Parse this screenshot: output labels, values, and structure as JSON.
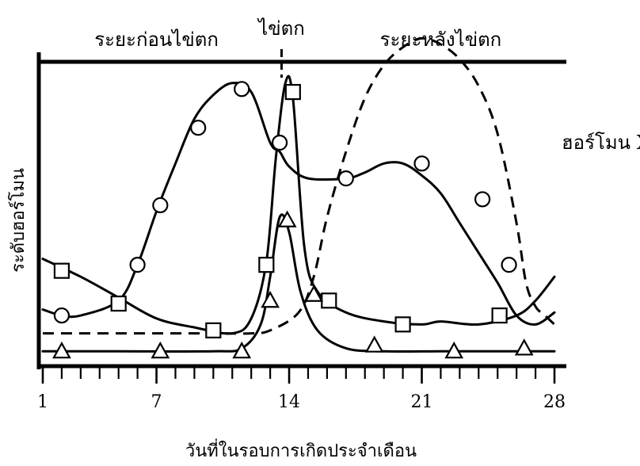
{
  "chart_data": {
    "type": "line",
    "phases": [
      {
        "label": "ระยะก่อนไข่ตก",
        "day": 7
      },
      {
        "label": "ไข่ตก",
        "day": 13.6
      },
      {
        "label": "ระยะหลังไข่ตก",
        "day": 22
      }
    ],
    "ovulation_day": 13.6,
    "xlabel": "วันที่ในรอบการเกิดประจำเดือน",
    "ylabel": "ระดับฮอร์โมน",
    "xlim": [
      1,
      28
    ],
    "ylim": [
      0,
      100
    ],
    "x_tick_labels": [
      {
        "day": 1,
        "label": "1"
      },
      {
        "day": 7,
        "label": "7"
      },
      {
        "day": 14,
        "label": "14"
      },
      {
        "day": 21,
        "label": "21"
      },
      {
        "day": 28,
        "label": "28"
      }
    ],
    "x_minor_ticks": [
      2,
      3,
      4,
      5,
      6,
      8,
      9,
      10,
      11,
      12,
      13,
      15,
      16,
      17,
      18,
      19,
      20,
      22,
      23,
      24,
      25,
      26,
      27
    ],
    "grid": false,
    "series": [
      {
        "marker": "circle",
        "curve": [
          [
            1,
            19
          ],
          [
            2,
            17
          ],
          [
            3,
            17
          ],
          [
            5,
            22
          ],
          [
            6,
            34
          ],
          [
            7,
            52
          ],
          [
            8,
            68
          ],
          [
            9,
            83
          ],
          [
            10,
            91
          ],
          [
            11,
            95
          ],
          [
            12,
            92
          ],
          [
            13,
            75
          ],
          [
            13.5,
            72
          ],
          [
            14,
            67
          ],
          [
            15,
            63
          ],
          [
            17,
            63
          ],
          [
            18,
            65
          ],
          [
            19,
            68
          ],
          [
            20,
            68
          ],
          [
            21,
            64
          ],
          [
            22,
            58
          ],
          [
            23,
            48
          ],
          [
            24,
            38
          ],
          [
            25,
            28
          ],
          [
            26,
            17
          ],
          [
            27,
            14
          ],
          [
            28,
            18
          ]
        ],
        "markers": [
          [
            2,
            17
          ],
          [
            6,
            34
          ],
          [
            7.2,
            54
          ],
          [
            9.2,
            80
          ],
          [
            11.5,
            93
          ],
          [
            13.5,
            75
          ],
          [
            17,
            63
          ],
          [
            21,
            68
          ],
          [
            24.2,
            56
          ],
          [
            25.6,
            34
          ]
        ]
      },
      {
        "marker": "square",
        "curve": [
          [
            1,
            36
          ],
          [
            3,
            30
          ],
          [
            5,
            23
          ],
          [
            7,
            16
          ],
          [
            9,
            13
          ],
          [
            11,
            11
          ],
          [
            12,
            16
          ],
          [
            12.8,
            35
          ],
          [
            13.3,
            70
          ],
          [
            13.8,
            95
          ],
          [
            14.2,
            90
          ],
          [
            14.8,
            40
          ],
          [
            15.5,
            25
          ],
          [
            17,
            18
          ],
          [
            19,
            15
          ],
          [
            21,
            14
          ],
          [
            22,
            15
          ],
          [
            24,
            14
          ],
          [
            26,
            17
          ],
          [
            27,
            22
          ],
          [
            28,
            30
          ]
        ],
        "markers": [
          [
            2,
            32
          ],
          [
            5,
            21
          ],
          [
            10,
            12
          ],
          [
            12.8,
            34
          ],
          [
            14.2,
            92
          ],
          [
            16.1,
            22
          ],
          [
            20,
            14
          ],
          [
            25.1,
            17
          ]
        ]
      },
      {
        "marker": "triangle",
        "curve": [
          [
            1,
            5
          ],
          [
            5,
            5
          ],
          [
            10,
            5
          ],
          [
            11.5,
            6
          ],
          [
            12.5,
            14
          ],
          [
            13,
            30
          ],
          [
            13.5,
            50
          ],
          [
            14,
            45
          ],
          [
            14.6,
            25
          ],
          [
            15.5,
            12
          ],
          [
            17,
            6
          ],
          [
            19,
            5
          ],
          [
            22,
            5
          ],
          [
            25,
            5
          ],
          [
            28,
            5
          ]
        ],
        "markers": [
          [
            2,
            5
          ],
          [
            7.2,
            5
          ],
          [
            11.5,
            5
          ],
          [
            13,
            22
          ],
          [
            13.9,
            49
          ],
          [
            15.3,
            24
          ],
          [
            18.5,
            7
          ],
          [
            22.7,
            5
          ],
          [
            26.4,
            6
          ]
        ]
      },
      {
        "name": "ฮอร์โมน X",
        "style": "dashed",
        "curve": [
          [
            1,
            11
          ],
          [
            6,
            11
          ],
          [
            10,
            11
          ],
          [
            12,
            11
          ],
          [
            13,
            12
          ],
          [
            14.5,
            18
          ],
          [
            15.3,
            30
          ],
          [
            16,
            50
          ],
          [
            17,
            72
          ],
          [
            18,
            90
          ],
          [
            19,
            101
          ],
          [
            20,
            107
          ],
          [
            21,
            110
          ],
          [
            22,
            108
          ],
          [
            23,
            103
          ],
          [
            24,
            94
          ],
          [
            25,
            78
          ],
          [
            26,
            48
          ],
          [
            26.5,
            28
          ],
          [
            27,
            20
          ],
          [
            27.5,
            17
          ],
          [
            28,
            14
          ]
        ]
      }
    ]
  }
}
